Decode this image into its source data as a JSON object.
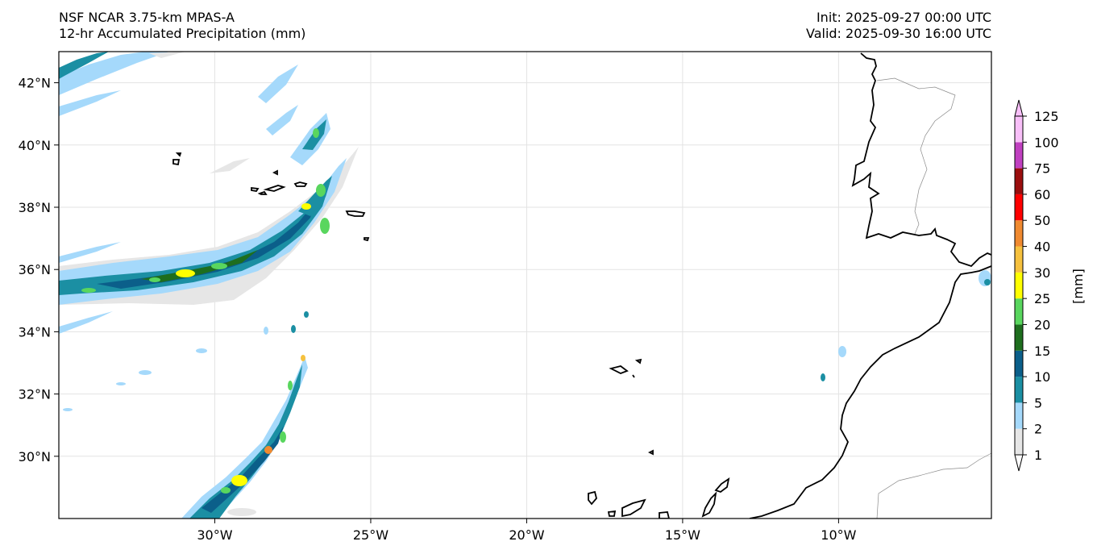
{
  "header": {
    "model": "NSF NCAR 3.75-km MPAS-A",
    "field": "12-hr Accumulated Precipitation (mm)",
    "init": "Init: 2025-09-27 00:00 UTC",
    "valid": "Valid: 2025-09-30 16:00 UTC"
  },
  "axes": {
    "lon_ticks": [
      "30°W",
      "25°W",
      "20°W",
      "15°W",
      "10°W"
    ],
    "lat_ticks": [
      "42°N",
      "40°N",
      "38°N",
      "36°N",
      "34°N",
      "32°N",
      "30°N"
    ],
    "lon_values": [
      -30,
      -25,
      -20,
      -15,
      -10
    ],
    "lat_values": [
      42,
      40,
      38,
      36,
      34,
      32,
      30
    ],
    "lon_range": [
      -35,
      -5.1
    ],
    "lat_range": [
      28.0,
      43.0
    ],
    "grid": true
  },
  "colorbar": {
    "unit_label": "[mm]",
    "extend": "both",
    "levels": [
      "1",
      "2",
      "5",
      "10",
      "15",
      "20",
      "25",
      "30",
      "40",
      "50",
      "60",
      "75",
      "100",
      "125"
    ],
    "colors": [
      "#e6e6e6",
      "#a5d9fb",
      "#1b8fa3",
      "#0b5f8a",
      "#1e6e1e",
      "#59d65e",
      "#ffff00",
      "#f6c13e",
      "#f08a30",
      "#ff0000",
      "#9b0e0e",
      "#c040c0",
      "#f8bff8"
    ],
    "under_color": "#ffffff",
    "over_color": "#f8bff8"
  },
  "map_colors": {
    "coast": "#000000",
    "border": "#8a8a8a",
    "grid": "#e3e3e3"
  }
}
